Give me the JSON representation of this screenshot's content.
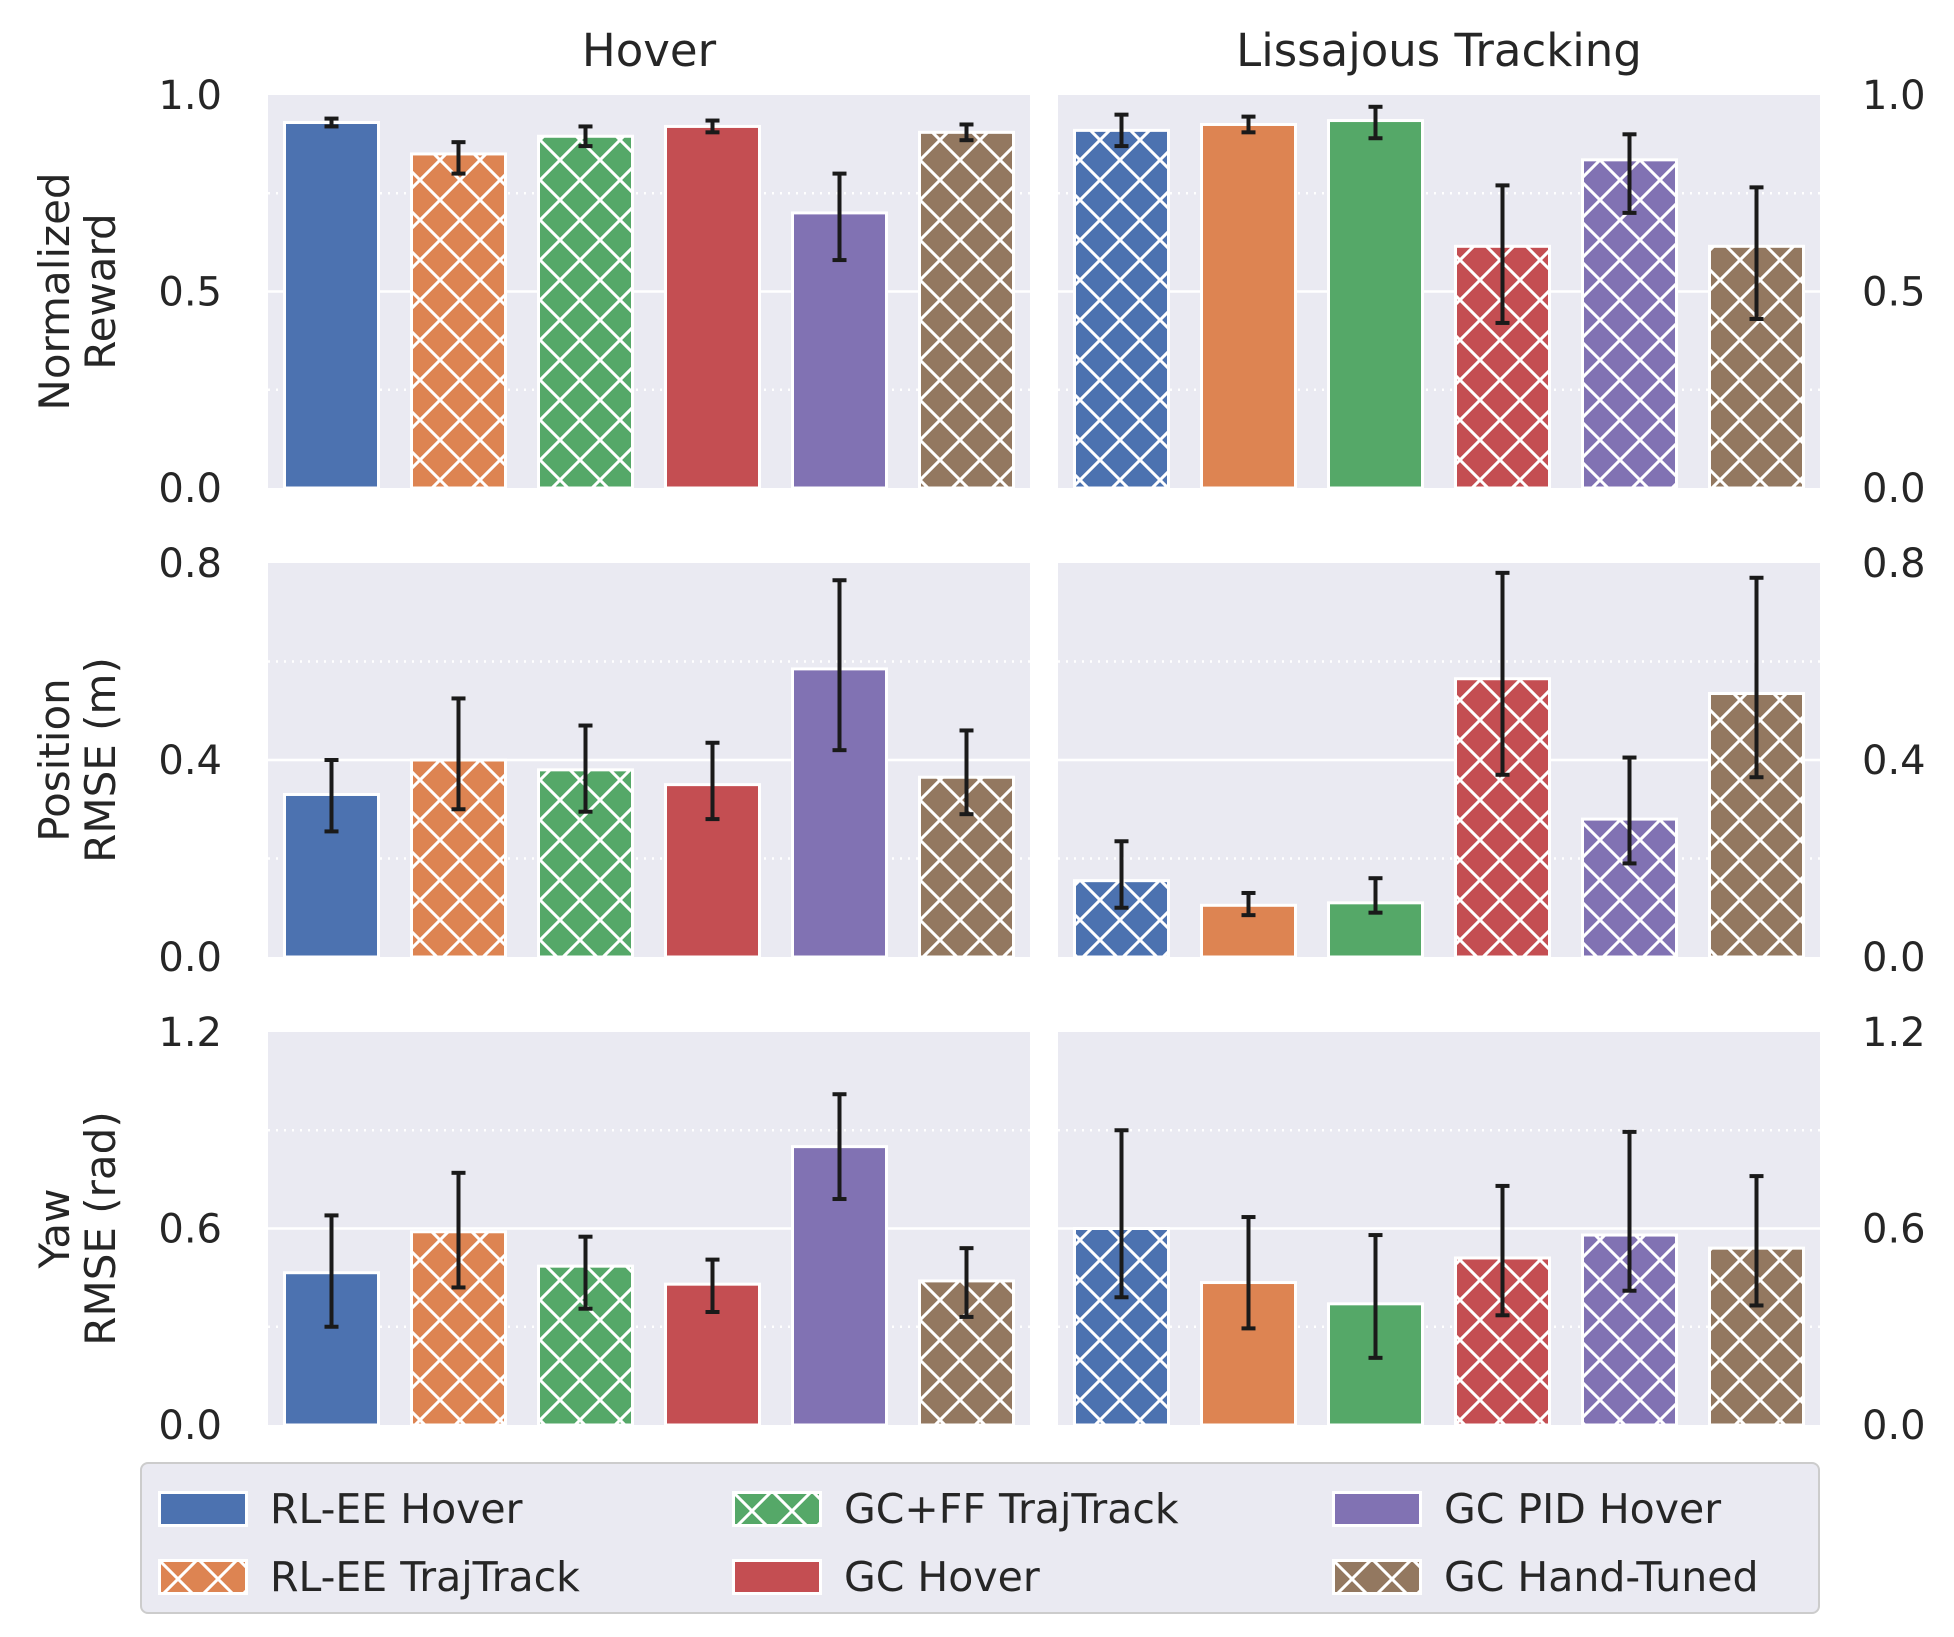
{
  "colors": {
    "RL-EE Hover": "#4c72b0",
    "RL-EE TrajTrack": "#dd8452",
    "GC+FF TrajTrack": "#55a868",
    "GC Hover": "#c44e52",
    "GC PID Hover": "#8172b3",
    "GC Hand-Tuned": "#937860",
    "panel_background": "#eaeaf2",
    "error_bar": "#1a1a1a"
  },
  "legend": {
    "items": [
      {
        "label": "RL-EE Hover",
        "hatch": false
      },
      {
        "label": "RL-EE TrajTrack",
        "hatch": true
      },
      {
        "label": "GC+FF TrajTrack",
        "hatch": true
      },
      {
        "label": "GC Hover",
        "hatch": false
      },
      {
        "label": "GC PID Hover",
        "hatch": false
      },
      {
        "label": "GC Hand-Tuned",
        "hatch": true
      }
    ]
  },
  "chart_data": {
    "type": "bar",
    "grid": true,
    "legend_position": "bottom",
    "series_names": [
      "RL-EE Hover",
      "RL-EE TrajTrack",
      "GC+FF TrajTrack",
      "GC Hover",
      "GC PID Hover",
      "GC Hand-Tuned"
    ],
    "columns": [
      {
        "title": "Hover",
        "hatched": [
          false,
          true,
          true,
          false,
          false,
          true
        ]
      },
      {
        "title": "Lissajous Tracking",
        "hatched": [
          true,
          false,
          false,
          true,
          true,
          true
        ]
      }
    ],
    "rows": [
      {
        "ylabel": [
          "Normalized",
          "Reward"
        ],
        "ylim": [
          0,
          1.0
        ],
        "ticks": [
          "0.0",
          "0.5",
          "1.0"
        ],
        "tick_values": [
          0,
          0.5,
          1.0
        ],
        "minor_ticks": [
          0.25,
          0.75
        ],
        "hover": {
          "values": [
            0.93,
            0.85,
            0.895,
            0.92,
            0.7,
            0.905
          ],
          "err_low": [
            0.92,
            0.8,
            0.87,
            0.905,
            0.58,
            0.885
          ],
          "err_high": [
            0.94,
            0.88,
            0.92,
            0.935,
            0.8,
            0.925
          ]
        },
        "lissajous": {
          "values": [
            0.91,
            0.925,
            0.935,
            0.615,
            0.835,
            0.615
          ],
          "err_low": [
            0.87,
            0.905,
            0.89,
            0.42,
            0.7,
            0.43
          ],
          "err_high": [
            0.95,
            0.945,
            0.97,
            0.77,
            0.9,
            0.765
          ]
        }
      },
      {
        "ylabel": [
          "Position",
          "RMSE (m)"
        ],
        "ylim": [
          0,
          0.8
        ],
        "ticks": [
          "0.0",
          "0.4",
          "0.8"
        ],
        "tick_values": [
          0,
          0.4,
          0.8
        ],
        "minor_ticks": [
          0.2,
          0.6
        ],
        "hover": {
          "values": [
            0.33,
            0.4,
            0.38,
            0.35,
            0.585,
            0.365
          ],
          "err_low": [
            0.255,
            0.3,
            0.295,
            0.28,
            0.42,
            0.29
          ],
          "err_high": [
            0.4,
            0.525,
            0.47,
            0.435,
            0.765,
            0.46
          ]
        },
        "lissajous": {
          "values": [
            0.155,
            0.105,
            0.11,
            0.565,
            0.28,
            0.535
          ],
          "err_low": [
            0.1,
            0.085,
            0.09,
            0.37,
            0.19,
            0.365
          ],
          "err_high": [
            0.235,
            0.13,
            0.16,
            0.78,
            0.405,
            0.77
          ]
        }
      },
      {
        "ylabel": [
          "Yaw",
          "RMSE (rad)"
        ],
        "ylim": [
          0,
          1.2
        ],
        "ticks": [
          "0.0",
          "0.6",
          "1.2"
        ],
        "tick_values": [
          0,
          0.6,
          1.2
        ],
        "minor_ticks": [
          0.3,
          0.9
        ],
        "hover": {
          "values": [
            0.465,
            0.59,
            0.485,
            0.43,
            0.85,
            0.44
          ],
          "err_low": [
            0.3,
            0.42,
            0.355,
            0.345,
            0.69,
            0.33
          ],
          "err_high": [
            0.64,
            0.77,
            0.575,
            0.505,
            1.01,
            0.54
          ]
        },
        "lissajous": {
          "values": [
            0.6,
            0.435,
            0.37,
            0.51,
            0.58,
            0.54
          ],
          "err_low": [
            0.39,
            0.295,
            0.205,
            0.335,
            0.41,
            0.365
          ],
          "err_high": [
            0.9,
            0.635,
            0.58,
            0.73,
            0.895,
            0.76
          ]
        }
      }
    ]
  }
}
